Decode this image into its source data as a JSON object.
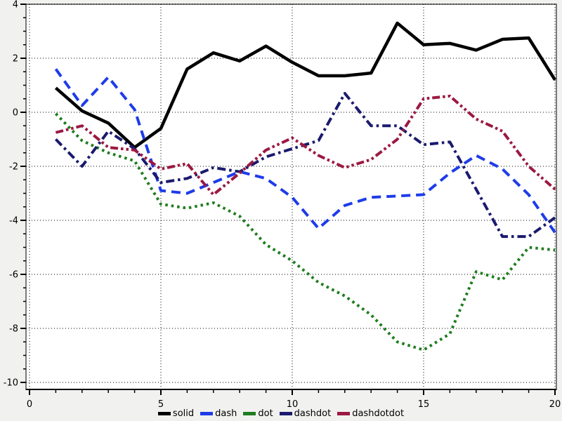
{
  "window": {
    "background": "#f1f1ef",
    "plot_background": "#ffffff",
    "frame_color": "#7a7a7a",
    "axis_color": "#000000",
    "grid_color": "#000000",
    "tick_label_color": "#000000"
  },
  "chart_data": {
    "type": "line",
    "title": "",
    "xlabel": "",
    "ylabel": "",
    "x_ticks": [
      0,
      5,
      10,
      15,
      20
    ],
    "y_ticks": [
      4,
      2,
      0,
      -2,
      -4,
      -6,
      -8,
      -10
    ],
    "x_minor_step": 1,
    "y_minor_step": 0.5,
    "xlim": [
      -0.13,
      20.05
    ],
    "ylim": [
      -10.26,
      4.0
    ],
    "grid": true,
    "legend_position": "bottom-center",
    "x": [
      1,
      2,
      3,
      4,
      5,
      6,
      7,
      8,
      9,
      10,
      11,
      12,
      13,
      14,
      15,
      16,
      17,
      18,
      19,
      20
    ],
    "series": [
      {
        "name": "solid",
        "style": "solid",
        "color": "#000000",
        "values": [
          0.9,
          0.05,
          -0.4,
          -1.3,
          -0.6,
          1.6,
          2.2,
          1.9,
          2.45,
          1.85,
          1.35,
          1.35,
          1.45,
          3.3,
          2.5,
          2.55,
          2.3,
          2.7,
          2.75,
          1.2
        ]
      },
      {
        "name": "dash",
        "style": "dash",
        "color": "#1e3ce8",
        "values": [
          1.6,
          0.25,
          1.3,
          0.1,
          -2.9,
          -3.0,
          -2.6,
          -2.2,
          -2.45,
          -3.15,
          -4.3,
          -3.45,
          -3.15,
          -3.1,
          -3.05,
          -2.25,
          -1.6,
          -2.1,
          -3.05,
          -4.45
        ]
      },
      {
        "name": "dot",
        "style": "dot",
        "color": "#1e7d1e",
        "values": [
          -0.05,
          -1.05,
          -1.5,
          -1.8,
          -3.4,
          -3.55,
          -3.35,
          -3.85,
          -4.9,
          -5.5,
          -6.3,
          -6.8,
          -7.5,
          -8.5,
          -8.8,
          -8.2,
          -5.9,
          -6.2,
          -5.0,
          -5.1
        ]
      },
      {
        "name": "dashdot",
        "style": "dashdot",
        "color": "#1a1a6e",
        "values": [
          -1.0,
          -2.0,
          -0.7,
          -1.35,
          -2.6,
          -2.45,
          -2.05,
          -2.2,
          -1.65,
          -1.35,
          -1.05,
          0.7,
          -0.5,
          -0.5,
          -1.2,
          -1.1,
          -2.85,
          -4.6,
          -4.6,
          -3.9
        ]
      },
      {
        "name": "dashdotdot",
        "style": "dashdotdot",
        "color": "#9b1941",
        "values": [
          -0.75,
          -0.5,
          -1.3,
          -1.4,
          -2.1,
          -1.9,
          -3.05,
          -2.25,
          -1.4,
          -0.95,
          -1.6,
          -2.05,
          -1.75,
          -1.0,
          0.5,
          0.6,
          -0.25,
          -0.7,
          -2.0,
          -2.85
        ]
      }
    ]
  }
}
